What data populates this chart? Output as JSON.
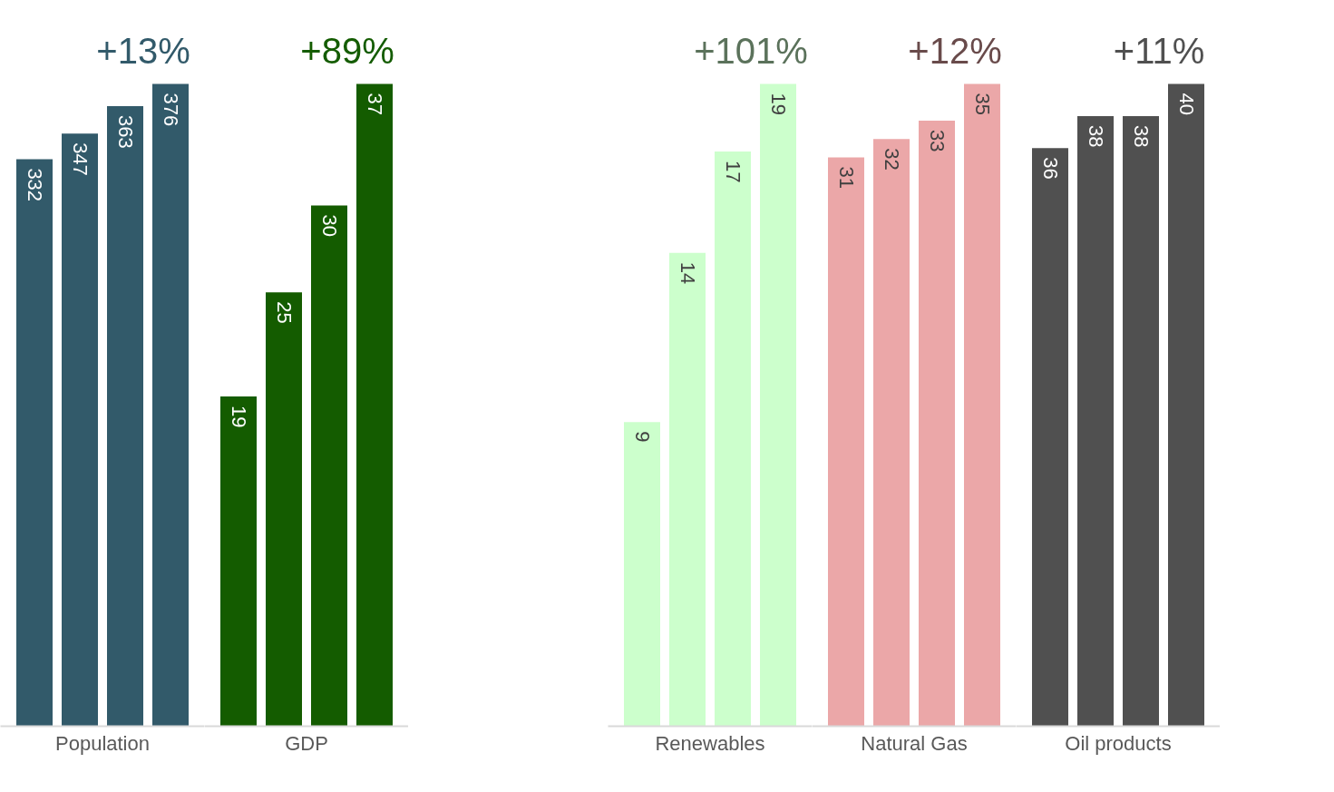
{
  "chart_data": [
    {
      "type": "bar",
      "xlabel": "Population",
      "categories": [
        null,
        null,
        null,
        null
      ],
      "values": [
        332,
        347,
        363,
        376
      ],
      "color": "#325a6a",
      "data_labels": true,
      "annotations": [
        "+13%"
      ]
    },
    {
      "type": "bar",
      "xlabel": "GDP",
      "categories": [
        null,
        null,
        null,
        null
      ],
      "values": [
        19,
        25,
        30,
        37
      ],
      "color": "#145c00",
      "data_labels": true,
      "annotations": [
        "+89%"
      ]
    },
    {
      "type": "bar",
      "xlabel": "Renewables",
      "categories": [
        null,
        null,
        null,
        null
      ],
      "values": [
        9,
        14,
        17,
        19
      ],
      "color": "#ccffcc",
      "data_labels": true,
      "annotations": [
        "+101%"
      ]
    },
    {
      "type": "bar",
      "xlabel": "Natural Gas",
      "categories": [
        null,
        null,
        null,
        null
      ],
      "values": [
        31,
        32,
        33,
        35
      ],
      "color": "#eba7a8",
      "data_labels": true,
      "annotations": [
        "+12%"
      ]
    },
    {
      "type": "bar",
      "xlabel": "Oil products",
      "categories": [
        null,
        null,
        null,
        null
      ],
      "values": [
        36,
        38,
        38,
        40
      ],
      "color": "#505050",
      "data_labels": true,
      "annotations": [
        "+11%"
      ]
    }
  ]
}
